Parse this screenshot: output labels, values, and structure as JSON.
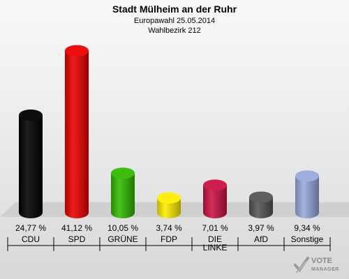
{
  "header": {
    "title": "Stadt Mülheim an der Ruhr",
    "line1": "Europawahl 25.05.2014",
    "line2": "Wahlbezirk 212"
  },
  "chart_data": {
    "type": "bar",
    "title": "Stadt Mülheim an der Ruhr",
    "subtitle": [
      "Europawahl 25.05.2014",
      "Wahlbezirk 212"
    ],
    "categories": [
      "CDU",
      "SPD",
      "GRÜNE",
      "FDP",
      "DIE LINKE",
      "AfD",
      "Sonstige"
    ],
    "category_lines": [
      [
        "CDU"
      ],
      [
        "SPD"
      ],
      [
        "GRÜNE"
      ],
      [
        "FDP"
      ],
      [
        "DIE",
        "LINKE"
      ],
      [
        "AfD"
      ],
      [
        "Sonstige"
      ]
    ],
    "values": [
      24.77,
      41.12,
      10.05,
      3.74,
      7.01,
      3.97,
      9.34
    ],
    "value_labels": [
      "24,77 %",
      "41,12 %",
      "10,05 %",
      "3,74 %",
      "7,01 %",
      "3,97 %",
      "9,34 %"
    ],
    "colors": [
      "#000000",
      "#ee0000",
      "#33bb00",
      "#ffee00",
      "#cc1144",
      "#555555",
      "#99aadd"
    ],
    "unit": "%",
    "grid": false,
    "legend": "none"
  },
  "logo": {
    "line1": "VOTE",
    "line2": "MANAGER"
  }
}
